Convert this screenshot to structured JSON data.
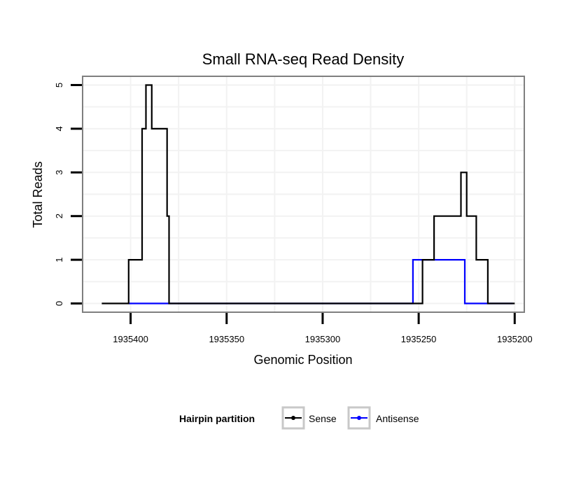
{
  "chart_data": {
    "type": "line",
    "title": "Small RNA-seq Read Density",
    "xlabel": "Genomic Position",
    "ylabel": "Total Reads",
    "xlim": [
      1935425,
      1935195
    ],
    "x_reversed": true,
    "ylim": [
      -0.2,
      5.2
    ],
    "x_ticks": [
      1935400,
      1935350,
      1935300,
      1935250,
      1935200
    ],
    "x_tick_labels": [
      "1935400",
      "1935350",
      "1935300",
      "1935250",
      "1935200"
    ],
    "y_ticks": [
      0,
      1,
      2,
      3,
      4,
      5
    ],
    "y_tick_labels": [
      "0",
      "1",
      "2",
      "3",
      "4",
      "5"
    ],
    "grid": true,
    "legend": {
      "title": "Hairpin partition",
      "position": "bottom",
      "entries": [
        "Sense",
        "Antisense"
      ]
    },
    "series": [
      {
        "name": "Sense",
        "color": "#000000",
        "x": [
          1935415,
          1935401,
          1935401,
          1935394,
          1935394,
          1935392,
          1935392,
          1935389,
          1935389,
          1935381,
          1935381,
          1935380,
          1935380,
          1935377,
          1935377,
          1935248,
          1935248,
          1935242,
          1935242,
          1935228,
          1935228,
          1935225,
          1935225,
          1935220,
          1935220,
          1935214,
          1935214,
          1935200
        ],
        "y": [
          0,
          0,
          1,
          1,
          4,
          4,
          5,
          5,
          4,
          4,
          2,
          2,
          0,
          0,
          0,
          0,
          1,
          1,
          2,
          2,
          3,
          3,
          2,
          2,
          1,
          1,
          0,
          0
        ]
      },
      {
        "name": "Antisense",
        "color": "#0000ff",
        "x": [
          1935401,
          1935377,
          1935253,
          1935253,
          1935226,
          1935226,
          1935201
        ],
        "y": [
          0,
          0,
          0,
          1,
          1,
          0,
          0
        ]
      }
    ]
  }
}
